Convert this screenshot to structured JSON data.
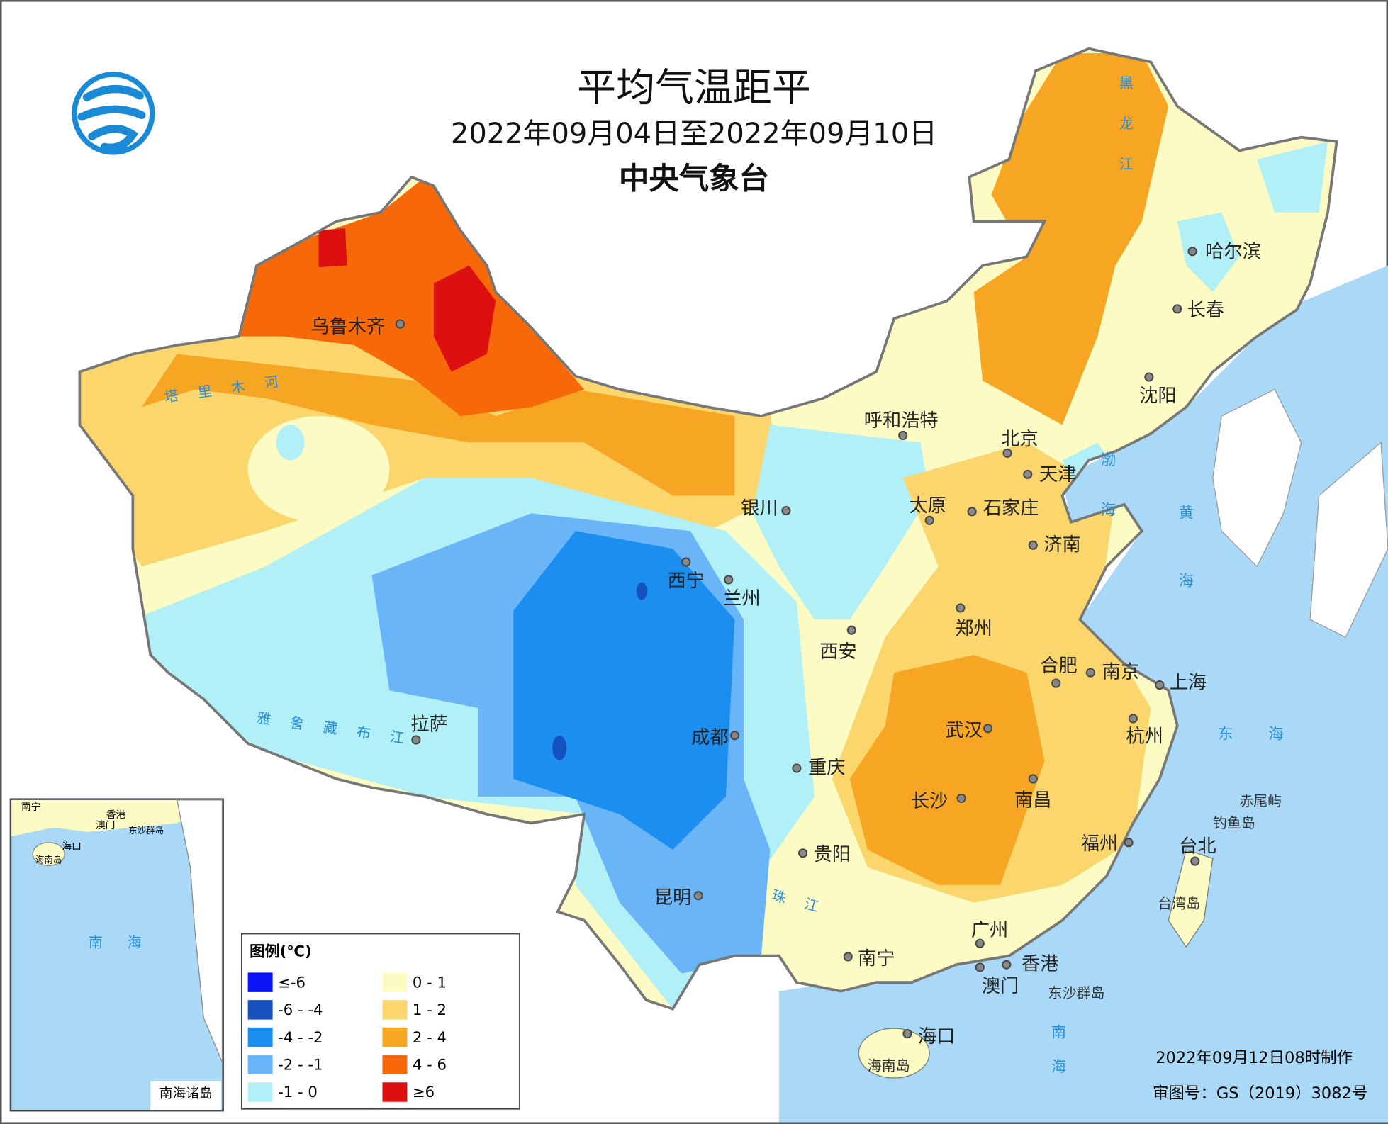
{
  "title": "平均气温距平",
  "subtitle": "2022年09月04日至2022年09月10日",
  "agency": "中央气象台",
  "legend": {
    "title": "图例(℃)",
    "items": [
      {
        "label": "≤-6",
        "color": "#0a14f5"
      },
      {
        "label": "-6 - -4",
        "color": "#1552c0"
      },
      {
        "label": "-4 - -2",
        "color": "#1c8ef0"
      },
      {
        "label": "-2 - -1",
        "color": "#6ab4f8"
      },
      {
        "label": "-1 - 0",
        "color": "#b2f0f8"
      },
      {
        "label": "0 - 1",
        "color": "#fdfbc4"
      },
      {
        "label": "1 - 2",
        "color": "#fbd66c"
      },
      {
        "label": "2 - 4",
        "color": "#f6a623"
      },
      {
        "label": "4 - 6",
        "color": "#f76808"
      },
      {
        "label": "≥6",
        "color": "#dc1010"
      }
    ]
  },
  "cities": [
    "乌鲁木齐",
    "哈尔滨",
    "长春",
    "沈阳",
    "呼和浩特",
    "北京",
    "天津",
    "银川",
    "太原",
    "石家庄",
    "济南",
    "西宁",
    "兰州",
    "郑州",
    "西安",
    "合肥",
    "南京",
    "上海",
    "拉萨",
    "成都",
    "武汉",
    "杭州",
    "重庆",
    "长沙",
    "南昌",
    "福州",
    "贵阳",
    "昆明",
    "台北",
    "南宁",
    "广州",
    "香港",
    "澳门",
    "海口"
  ],
  "rivers": [
    "塔里木河",
    "雅鲁藏布江",
    "黑龙江",
    "珠江"
  ],
  "seas": [
    "渤海",
    "黄海",
    "东海",
    "南海"
  ],
  "islands": [
    "赤尾屿",
    "钓鱼岛",
    "台湾岛",
    "海南岛",
    "东沙群岛"
  ],
  "inset": {
    "title": "南海诸岛",
    "labels": [
      "南宁",
      "香港",
      "澳门",
      "东沙群岛",
      "海口",
      "海南岛",
      "南海"
    ]
  },
  "footer": {
    "made": "2022年09月12日08时制作",
    "approval": "审图号：GS（2019）3082号"
  }
}
